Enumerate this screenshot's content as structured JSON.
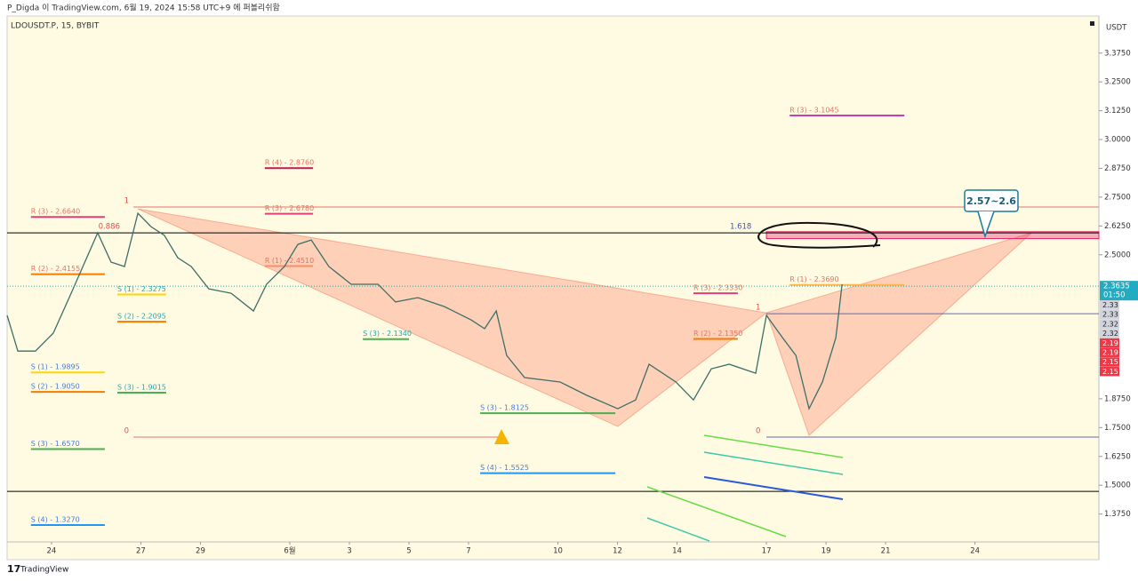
{
  "header": "P_Digda 이 TradingView.com, 6월 19, 2024 15:58 UTC+9 에 퍼블리쉬함",
  "footer": "TradingView",
  "chart_data": {
    "type": "line",
    "title": "LDOUSDT.P, 15, BYBIT",
    "currency": "USDT",
    "color": "#3d6e6a",
    "xlim": [
      -1.49,
      35.16
    ],
    "ylim": [
      1.254,
      3.536
    ],
    "xticks": [
      {
        "value": 0,
        "label": "24"
      },
      {
        "value": 3,
        "label": "27"
      },
      {
        "value": 5,
        "label": "29"
      },
      {
        "value": 8,
        "label": "6월"
      },
      {
        "value": 10,
        "label": "3"
      },
      {
        "value": 12,
        "label": "5"
      },
      {
        "value": 14,
        "label": "7"
      },
      {
        "value": 17,
        "label": "10"
      },
      {
        "value": 19,
        "label": "12"
      },
      {
        "value": 21,
        "label": "14"
      },
      {
        "value": 24,
        "label": "17"
      },
      {
        "value": 26,
        "label": "19"
      },
      {
        "value": 28,
        "label": "21"
      },
      {
        "value": 31,
        "label": "24"
      }
    ],
    "yticks": [
      {
        "value": 3.375,
        "label": "3.3750"
      },
      {
        "value": 3.25,
        "label": "3.2500"
      },
      {
        "value": 3.125,
        "label": "3.1250"
      },
      {
        "value": 3.0,
        "label": "3.0000"
      },
      {
        "value": 2.875,
        "label": "2.8750"
      },
      {
        "value": 2.75,
        "label": "2.7500"
      },
      {
        "value": 2.625,
        "label": "2.6250"
      },
      {
        "value": 2.5,
        "label": "2.5000"
      },
      {
        "value": 1.875,
        "label": "1.8750"
      },
      {
        "value": 1.75,
        "label": "1.7500"
      },
      {
        "value": 1.625,
        "label": "1.6250"
      },
      {
        "value": 1.5,
        "label": "1.5000"
      },
      {
        "value": 1.375,
        "label": "1.3750"
      }
    ],
    "x": [
      -1.49,
      -1.13,
      -0.54,
      0.06,
      0.66,
      1.55,
      2.0,
      2.45,
      2.9,
      3.34,
      3.79,
      4.24,
      4.69,
      5.28,
      6.03,
      6.78,
      7.22,
      7.82,
      8.27,
      8.72,
      9.31,
      10.06,
      10.96,
      11.55,
      12.3,
      13.19,
      14.09,
      14.54,
      14.93,
      15.28,
      15.88,
      17.07,
      17.97,
      19.01,
      19.61,
      20.06,
      20.96,
      21.55,
      22.15,
      22.75,
      23.64,
      24.0,
      24.54,
      24.99,
      25.43,
      25.88,
      26.33,
      26.54
    ],
    "values": [
      2.237,
      2.082,
      2.082,
      2.16,
      2.333,
      2.595,
      2.468,
      2.449,
      2.68,
      2.622,
      2.584,
      2.487,
      2.449,
      2.352,
      2.333,
      2.256,
      2.372,
      2.449,
      2.545,
      2.564,
      2.449,
      2.372,
      2.372,
      2.295,
      2.314,
      2.275,
      2.217,
      2.179,
      2.256,
      2.063,
      1.967,
      1.948,
      1.89,
      1.832,
      1.87,
      2.025,
      1.948,
      1.87,
      2.005,
      2.025,
      1.986,
      2.237,
      2.14,
      2.063,
      1.832,
      1.948,
      2.14,
      2.372
    ],
    "last_price": {
      "value": 2.3635,
      "label": "2.3635"
    },
    "countdown": "01:50",
    "axis_badges": [
      {
        "text": "2.33",
        "color": "#d1d4dc"
      },
      {
        "text": "2.33",
        "color": "#d1d4dc"
      },
      {
        "text": "2.32",
        "color": "#d1d4dc"
      },
      {
        "text": "2.32",
        "color": "#d1d4dc"
      },
      {
        "text": "2.19",
        "color": "#f23645"
      },
      {
        "text": "2.19",
        "color": "#f23645"
      },
      {
        "text": "2.15",
        "color": "#f23645"
      },
      {
        "text": "2.15",
        "color": "#f23645"
      }
    ],
    "pivots": [
      {
        "label": "R (3) - 2.6640",
        "value": 2.664,
        "x": [
          -0.69,
          1.79
        ],
        "color": "#e0407a",
        "text_color": "#e57360"
      },
      {
        "label": "R (2) - 2.4155",
        "value": 2.4155,
        "x": [
          -0.69,
          1.79
        ],
        "color": "#f57c00",
        "text_color": "#e57360"
      },
      {
        "label": "S (1) - 1.9895",
        "value": 1.9895,
        "x": [
          -0.69,
          1.79
        ],
        "color": "#ffd600",
        "text_color": "#4a7bd0"
      },
      {
        "label": "S (2) - 1.9050",
        "value": 1.905,
        "x": [
          -0.69,
          1.79
        ],
        "color": "#f57c00",
        "text_color": "#4a7bd0"
      },
      {
        "label": "S (3) - 1.6570",
        "value": 1.657,
        "x": [
          -0.69,
          1.79
        ],
        "color": "#4caf50",
        "text_color": "#4a7bd0"
      },
      {
        "label": "S (4) - 1.3270",
        "value": 1.327,
        "x": [
          -0.69,
          1.79
        ],
        "color": "#2196f3",
        "text_color": "#4a7bd0"
      },
      {
        "label": "S (1) - 2.3275",
        "value": 2.3275,
        "x": [
          2.21,
          3.85
        ],
        "color": "#ffd600",
        "text_color": "#26a6b0"
      },
      {
        "label": "S (2) - 2.2095",
        "value": 2.2095,
        "x": [
          2.21,
          3.85
        ],
        "color": "#f57c00",
        "text_color": "#26a6b0"
      },
      {
        "label": "S (3) - 1.9015",
        "value": 1.9015,
        "x": [
          2.21,
          3.85
        ],
        "color": "#4caf50",
        "text_color": "#26a6b0"
      },
      {
        "label": "R (4) - 2.8760",
        "value": 2.876,
        "x": [
          7.16,
          8.78
        ],
        "color": "#c2185b",
        "text_color": "#e57360"
      },
      {
        "label": "R (3) - 2.6780",
        "value": 2.678,
        "x": [
          7.16,
          8.78
        ],
        "color": "#e0407a",
        "text_color": "#e57360"
      },
      {
        "label": "R (1) - 2.4510",
        "value": 2.451,
        "x": [
          7.16,
          8.78
        ],
        "color": "#ff8a65",
        "text_color": "#e57360"
      },
      {
        "label": "S (3) - 2.1340",
        "value": 2.134,
        "x": [
          10.45,
          12.0
        ],
        "color": "#4caf50",
        "text_color": "#26a6b0"
      },
      {
        "label": "S (3) - 1.8125",
        "value": 1.8125,
        "x": [
          14.39,
          18.93
        ],
        "color": "#4caf50",
        "text_color": "#4a7bd0"
      },
      {
        "label": "S (4) - 1.5525",
        "value": 1.5525,
        "x": [
          14.39,
          18.93
        ],
        "color": "#2196f3",
        "text_color": "#4a7bd0"
      },
      {
        "label": "R (3) - 2.3330",
        "value": 2.333,
        "x": [
          21.55,
          23.04
        ],
        "color": "#e0407a",
        "text_color": "#e57360"
      },
      {
        "label": "R (2) - 2.1350",
        "value": 2.135,
        "x": [
          21.55,
          23.04
        ],
        "color": "#f57c00",
        "text_color": "#e57360"
      },
      {
        "label": "R (3) - 3.1045",
        "value": 3.1045,
        "x": [
          24.78,
          28.63
        ],
        "color": "#c040c0",
        "text_color": "#e57360"
      },
      {
        "label": "R (1) - 2.3690",
        "value": 2.369,
        "x": [
          24.78,
          28.63
        ],
        "color": "#ffb74d",
        "text_color": "#e57360"
      }
    ],
    "hlines": [
      {
        "price": 2.707,
        "x": [
          2.75,
          35.16
        ],
        "color": "#e57373"
      },
      {
        "price": 2.595,
        "x": [
          -1.49,
          35.16
        ],
        "color": "#000000"
      },
      {
        "price": 1.709,
        "x": [
          2.75,
          15.0
        ],
        "color": "#e57373"
      },
      {
        "price": 2.244,
        "x": [
          24.0,
          35.16
        ],
        "color": "#5c6bc0"
      },
      {
        "price": 1.709,
        "x": [
          24.0,
          35.16
        ],
        "color": "#5c6bc0"
      },
      {
        "price": 1.473,
        "x": [
          -1.49,
          35.16
        ],
        "color": "#000000"
      }
    ],
    "fib_labels": [
      {
        "ratio": 1,
        "price": 2.707,
        "x": 2.6
      },
      {
        "ratio": 0.886,
        "price": 2.595,
        "x": 2.3
      },
      {
        "ratio": 0,
        "price": 1.709,
        "x": 2.6
      },
      {
        "ratio": 1.618,
        "price": 2.595,
        "x": 23.5
      },
      {
        "ratio": 1,
        "price": 2.244,
        "x": 23.8
      },
      {
        "ratio": 0,
        "price": 1.709,
        "x": 23.8
      }
    ],
    "pattern": [
      {
        "x": 2.9,
        "price": 2.699
      },
      {
        "x": 19.01,
        "price": 1.755
      },
      {
        "x": 24.0,
        "price": 2.248
      },
      {
        "x": 25.43,
        "price": 1.716
      },
      {
        "x": 32.9,
        "price": 2.595
      }
    ],
    "zone": {
      "range": [
        2.57,
        2.6
      ],
      "x": [
        24.0,
        35.16
      ],
      "label": "2.57~2.6"
    }
  }
}
